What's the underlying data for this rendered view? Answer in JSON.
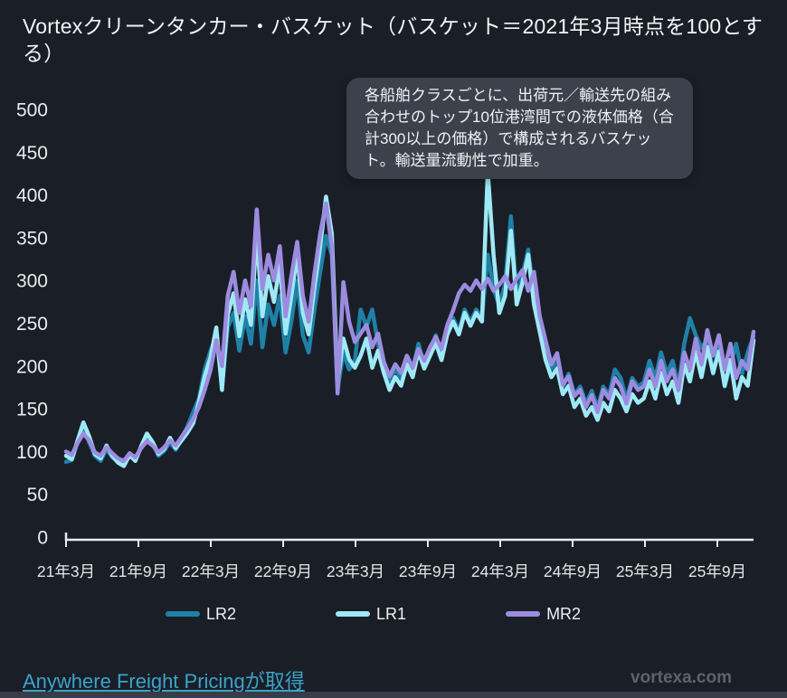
{
  "header": {
    "title": "Vortexクリーンタンカー・バスケット（バスケット＝2021年3月時点を100とする）"
  },
  "tooltip": {
    "text": "各船舶クラスごとに、出荷元／輸送先の組み合わせのトップ10位港湾間での液体価格（合計300以上の価格）で構成されるバスケット。輸送量流動性で加重。"
  },
  "footer": {
    "link_label": "Anywhere Freight Pricingが取得",
    "watermark": "vortexa.com"
  },
  "colors": {
    "background": "#1a1e27",
    "axis": "#e8ebee",
    "y_label": "#e9edf0",
    "x_label": "#e2e6ea",
    "tooltip_bg": "#3b424c",
    "link": "#3ba3c9",
    "watermark": "#5d636c",
    "bottom_bar": "#363d48"
  },
  "chart_data": {
    "type": "line",
    "title": "Vortexクリーンタンカー・バスケット（バスケット＝2021年3月時点を100とする）",
    "xlabel": "",
    "ylabel": "",
    "ylim": [
      0,
      500
    ],
    "yticks": [
      0,
      50,
      100,
      150,
      200,
      250,
      300,
      350,
      400,
      450,
      500
    ],
    "x_tick_labels": [
      "21年3月",
      "21年9月",
      "22年3月",
      "22年9月",
      "23年3月",
      "23年9月",
      "24年3月",
      "24年9月",
      "25年3月",
      "25年9月"
    ],
    "grid": false,
    "legend_position": "bottom",
    "series": [
      {
        "name": "LR2",
        "color": "#1f81a6",
        "values": [
          88,
          90,
          111,
          129,
          111,
          95,
          89,
          103,
          93,
          89,
          85,
          97,
          91,
          104,
          116,
          109,
          95,
          101,
          111,
          102,
          116,
          129,
          146,
          162,
          196,
          218,
          235,
          176,
          245,
          262,
          218,
          258,
          226,
          300,
          222,
          272,
          248,
          282,
          216,
          252,
          300,
          236,
          216,
          266,
          310,
          352,
          330,
          172,
          216,
          196,
          206,
          266,
          246,
          266,
          226,
          196,
          181,
          196,
          186,
          211,
          196,
          226,
          201,
          216,
          236,
          211,
          241,
          256,
          241,
          266,
          251,
          266,
          256,
          330,
          290,
          271,
          296,
          375,
          281,
          306,
          336,
          281,
          251,
          216,
          196,
          206,
          176,
          191,
          166,
          176,
          156,
          171,
          151,
          176,
          166,
          196,
          186,
          161,
          186,
          176,
          181,
          206,
          186,
          216,
          191,
          206,
          176,
          226,
          256,
          236,
          221,
          231,
          191,
          221,
          176,
          201,
          226,
          191,
          216,
          235
        ]
      },
      {
        "name": "LR1",
        "color": "#9fe9f6",
        "values": [
          95,
          91,
          113,
          134,
          118,
          97,
          92,
          107,
          95,
          87,
          83,
          96,
          89,
          106,
          121,
          111,
          97,
          103,
          116,
          104,
          113,
          122,
          133,
          158,
          188,
          210,
          245,
          172,
          260,
          285,
          235,
          278,
          248,
          355,
          258,
          305,
          275,
          318,
          238,
          282,
          330,
          262,
          237,
          292,
          340,
          398,
          355,
          180,
          232,
          208,
          198,
          212,
          232,
          198,
          218,
          192,
          172,
          187,
          177,
          202,
          187,
          217,
          197,
          212,
          227,
          207,
          237,
          252,
          237,
          262,
          247,
          262,
          252,
          428,
          330,
          262,
          282,
          358,
          272,
          297,
          330,
          272,
          240,
          207,
          187,
          197,
          167,
          177,
          152,
          162,
          142,
          152,
          137,
          157,
          147,
          172,
          162,
          147,
          167,
          157,
          162,
          182,
          162,
          192,
          167,
          182,
          157,
          202,
          182,
          217,
          187,
          222,
          192,
          217,
          177,
          207,
          162,
          187,
          177,
          230
        ]
      },
      {
        "name": "MR2",
        "color": "#9c8ce0",
        "values": [
          100,
          96,
          110,
          121,
          113,
          99,
          95,
          105,
          98,
          92,
          89,
          98,
          93,
          104,
          112,
          107,
          99,
          105,
          113,
          107,
          117,
          127,
          138,
          152,
          172,
          195,
          230,
          200,
          282,
          310,
          262,
          300,
          270,
          383,
          290,
          330,
          300,
          340,
          258,
          305,
          345,
          282,
          252,
          308,
          355,
          390,
          340,
          168,
          298,
          252,
          228,
          238,
          248,
          222,
          238,
          205,
          188,
          202,
          192,
          212,
          198,
          220,
          206,
          222,
          234,
          220,
          248,
          265,
          285,
          295,
          288,
          300,
          290,
          302,
          288,
          295,
          305,
          290,
          302,
          312,
          288,
          310,
          258,
          230,
          202,
          215,
          178,
          188,
          165,
          172,
          152,
          166,
          146,
          172,
          162,
          186,
          176,
          156,
          182,
          172,
          176,
          196,
          176,
          206,
          182,
          196,
          172,
          216,
          196,
          232,
          202,
          242,
          212,
          236,
          196,
          226,
          186,
          206,
          196,
          240
        ]
      }
    ]
  }
}
